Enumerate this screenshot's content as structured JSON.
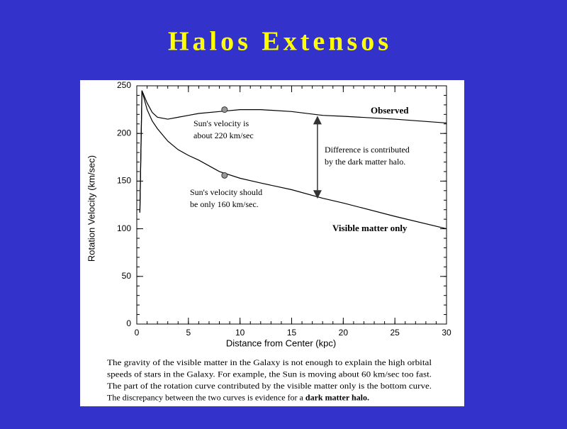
{
  "title": "Halos Extensos",
  "caption": [
    "The gravity of the visible matter in the Galaxy is not enough to explain the high orbital",
    "speeds of stars in the Galaxy. For example, the Sun is moving about 60 km/sec too fast.",
    "The part of the rotation curve contributed by the visible matter only is the bottom curve.",
    "The discrepancy between the two curves is evidence for a "
  ],
  "caption_bold": "dark matter halo.",
  "chart_data": {
    "type": "line",
    "x_label": "Distance from Center (kpc)",
    "y_label": "Rotation Velocity (km/sec)",
    "xlim": [
      0,
      30
    ],
    "xticks": [
      0,
      5,
      10,
      15,
      20,
      25,
      30
    ],
    "ylim": [
      0,
      250
    ],
    "yticks": [
      0,
      50,
      100,
      150,
      200,
      250
    ],
    "series": [
      {
        "name": "Observed",
        "color": "#000000",
        "x": [
          0.3,
          0.5,
          1,
          1.5,
          2,
          3,
          4,
          5,
          6,
          8,
          10,
          12,
          15,
          18,
          20,
          25,
          30
        ],
        "values": [
          117,
          245,
          232,
          222,
          217,
          215,
          217,
          219,
          221,
          223,
          225,
          225,
          223,
          219,
          218,
          215,
          211
        ]
      },
      {
        "name": "Visible matter only",
        "color": "#000000",
        "x": [
          0.3,
          0.5,
          1,
          1.5,
          2,
          3,
          4,
          5,
          6,
          8,
          10,
          12,
          15,
          18,
          20,
          25,
          30
        ],
        "values": [
          117,
          245,
          225,
          213,
          205,
          192,
          183,
          177,
          172,
          160,
          153,
          148,
          141,
          132,
          127,
          113,
          100
        ]
      }
    ],
    "markers": [
      {
        "x": 8.5,
        "y": 225
      },
      {
        "x": 8.5,
        "y": 156
      }
    ],
    "arrow": {
      "x": 17.5,
      "from": 217,
      "to": 133
    },
    "annotations": [
      {
        "lines": [
          "Sun's velocity is",
          "about 220 km/sec"
        ]
      },
      {
        "lines": [
          "Difference is contributed",
          "by the dark matter halo."
        ]
      },
      {
        "lines": [
          "Sun's velocity should",
          "be only 160 km/sec."
        ]
      }
    ]
  }
}
